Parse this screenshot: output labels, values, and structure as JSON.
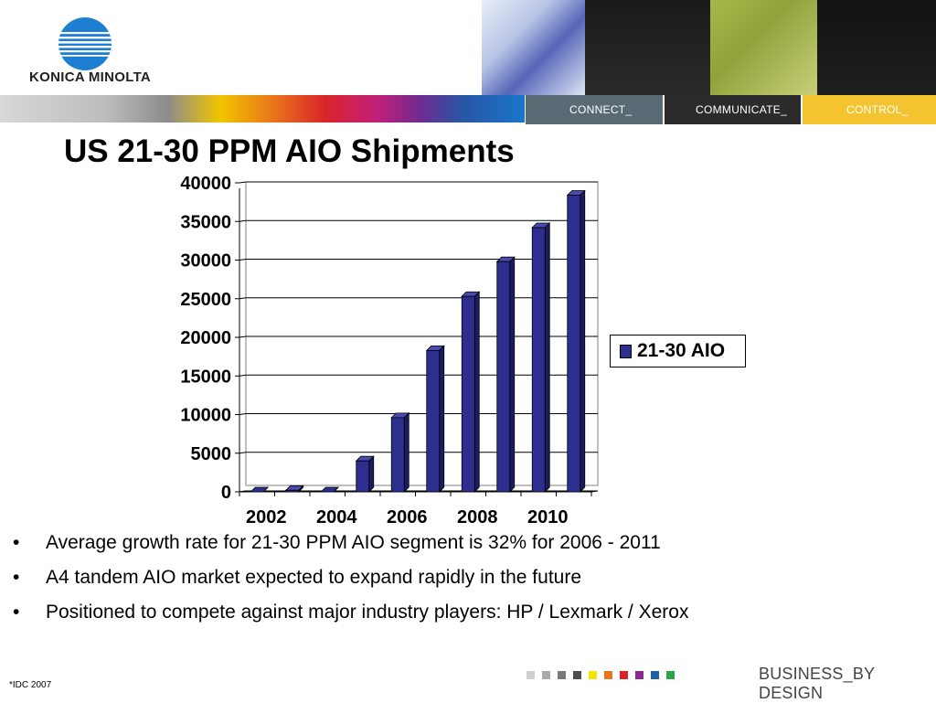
{
  "header": {
    "logo_text": "KONICA MINOLTA",
    "tabs": [
      {
        "label": "CONNECT_"
      },
      {
        "label": "COMMUNICATE_"
      },
      {
        "label": "CONTROL_"
      }
    ]
  },
  "title": "US 21-30 PPM AIO Shipments",
  "chart_data": {
    "type": "bar",
    "title": "",
    "xlabel": "",
    "ylabel": "",
    "categories": [
      "2002",
      "2003",
      "2004",
      "2005",
      "2006",
      "2007",
      "2008",
      "2009",
      "2010",
      "2011"
    ],
    "x_tick_labels": [
      "2002",
      "2004",
      "2006",
      "2008",
      "2010"
    ],
    "series": [
      {
        "name": "21-30 AIO",
        "values": [
          0,
          200,
          0,
          4000,
          9600,
          18300,
          25300,
          29800,
          34200,
          38400
        ],
        "color": "#2e2e8e"
      }
    ],
    "ylim": [
      0,
      40000
    ],
    "y_ticks": [
      0,
      5000,
      10000,
      15000,
      20000,
      25000,
      30000,
      35000,
      40000
    ],
    "grid": true,
    "legend": "right"
  },
  "bullets": [
    "Average growth rate for 21-30 PPM AIO segment is 32% for 2006 - 2011",
    "A4 tandem AIO market expected to expand rapidly in the future",
    "Positioned to compete against major industry players:  HP / Lexmark / Xerox"
  ],
  "footer": {
    "source": "*IDC 2007",
    "tagline": "BUSINESS_BY DESIGN",
    "dot_colors": [
      "#cfcfcf",
      "#a9a9a9",
      "#7a7a7a",
      "#4e4e4e",
      "#f2e500",
      "#e9761a",
      "#d9242a",
      "#8a2a8f",
      "#1f5fa8",
      "#2aa54a"
    ]
  },
  "colors": {
    "bar": "#2e2e8e",
    "accent_yellow": "#f4c430"
  }
}
